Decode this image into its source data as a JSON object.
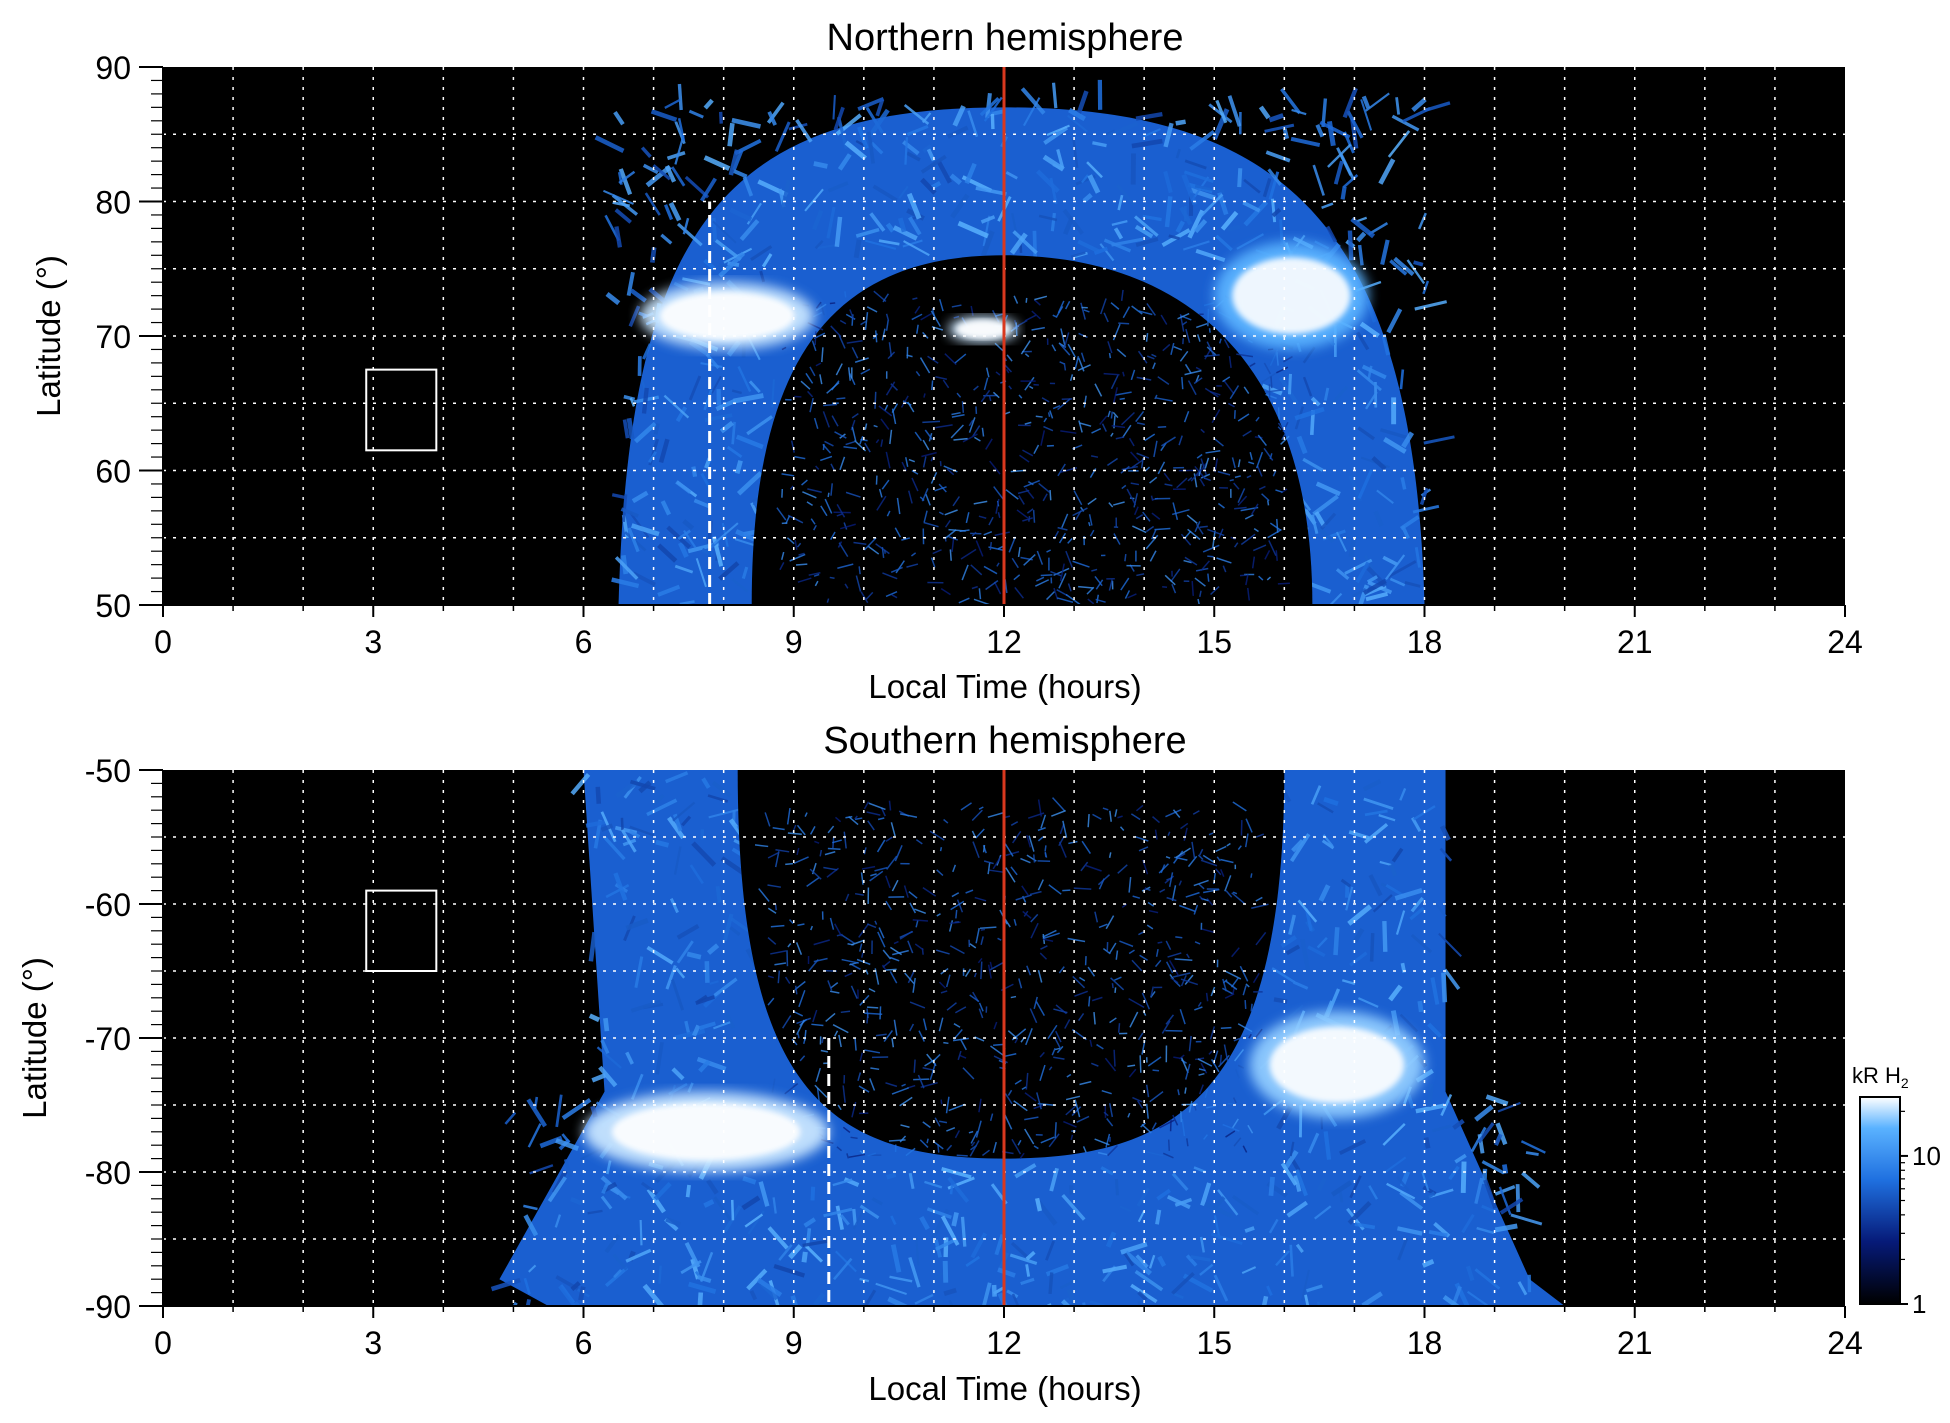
{
  "chart_data": [
    {
      "type": "heatmap",
      "title": "Northern hemisphere",
      "xlabel": "Local Time (hours)",
      "ylabel": "Latitude (°)",
      "xlim": [
        0,
        24
      ],
      "ylim": [
        50,
        90
      ],
      "x_ticks": [
        "0",
        "3",
        "6",
        "9",
        "12",
        "15",
        "18",
        "21",
        "24"
      ],
      "y_ticks": [
        "50",
        "60",
        "70",
        "80",
        "90"
      ],
      "grid": true,
      "background": "#000000",
      "colormap": "black-blue-white",
      "noon_line": {
        "x": 12,
        "color": "#d9381e"
      },
      "dashed_line": {
        "x": 7.8,
        "y_range": [
          50,
          80
        ],
        "color": "#ffffff"
      },
      "box": {
        "x": [
          2.9,
          3.9
        ],
        "y": [
          61.5,
          67.5
        ]
      },
      "features": [
        {
          "name": "outer emission band",
          "lt_range": [
            6.5,
            18
          ],
          "lat_range": [
            50,
            87
          ],
          "level": 0.55
        },
        {
          "name": "dawn bright arc",
          "lt_range": [
            6.8,
            9.3
          ],
          "lat_range": [
            69,
            74
          ],
          "level": 0.95
        },
        {
          "name": "dusk bright arc",
          "lt_range": [
            15,
            17.2
          ],
          "lat_range": [
            69,
            77
          ],
          "level": 0.85
        },
        {
          "name": "noon spot",
          "lt_range": [
            11.2,
            12.2
          ],
          "lat_range": [
            69.5,
            71.5
          ],
          "level": 0.95
        },
        {
          "name": "polar cap dark",
          "lt_range": [
            8.4,
            16.4
          ],
          "lat_range": [
            50,
            76
          ],
          "level": 0.05
        }
      ]
    },
    {
      "type": "heatmap",
      "title": "Southern hemisphere",
      "xlabel": "Local Time (hours)",
      "ylabel": "Latitude (°)",
      "xlim": [
        0,
        24
      ],
      "ylim": [
        -90,
        -50
      ],
      "x_ticks": [
        "0",
        "3",
        "6",
        "9",
        "12",
        "15",
        "18",
        "21",
        "24"
      ],
      "y_ticks": [
        "-50",
        "-60",
        "-70",
        "-80",
        "-90"
      ],
      "grid": true,
      "background": "#000000",
      "colormap": "black-blue-white",
      "noon_line": {
        "x": 12,
        "color": "#d9381e"
      },
      "dashed_line": {
        "x": 9.5,
        "y_range": [
          -70,
          -90
        ],
        "color": "#ffffff"
      },
      "box": {
        "x": [
          2.9,
          3.9
        ],
        "y": [
          -65,
          -59
        ]
      },
      "features": [
        {
          "name": "outer emission band",
          "lt_range": [
            4.8,
            20
          ],
          "lat_range": [
            -90,
            -50
          ],
          "level": 0.55
        },
        {
          "name": "dawn bright arc",
          "lt_range": [
            6,
            9.5
          ],
          "lat_range": [
            -80,
            -74
          ],
          "level": 0.95
        },
        {
          "name": "dusk bright arc",
          "lt_range": [
            15.5,
            18
          ],
          "lat_range": [
            -76,
            -68
          ],
          "level": 0.9
        },
        {
          "name": "polar cap dark",
          "lt_range": [
            8.2,
            16
          ],
          "lat_range": [
            -79,
            -50
          ],
          "level": 0.05
        }
      ]
    }
  ],
  "colorbar": {
    "label": "kR H",
    "label_subscript": "2",
    "ticks": [
      "1",
      "10"
    ],
    "scale": "log"
  },
  "colors": {
    "noon": "#d9381e",
    "grid": "#ffffff",
    "background": "#000000"
  }
}
